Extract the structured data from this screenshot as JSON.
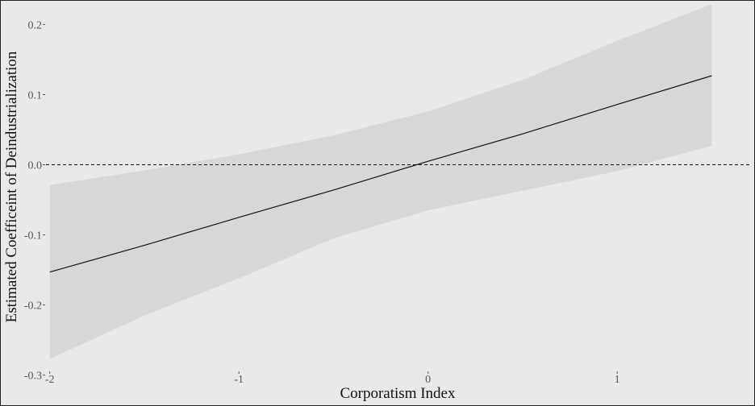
{
  "chart_data": {
    "type": "line",
    "xlabel": "Corporatism Index",
    "ylabel": "Estimated Coefficeint of Deindustrialization",
    "xlim": [
      -2.02,
      1.72
    ],
    "ylim": [
      -0.305,
      0.235
    ],
    "x_ticks": [
      -2,
      -1,
      0,
      1
    ],
    "x_tick_labels": [
      "-2",
      "-1",
      "0",
      "1"
    ],
    "y_ticks": [
      0.2,
      0.1,
      0.0,
      -0.1,
      -0.2,
      -0.3
    ],
    "y_tick_labels": [
      "0.2",
      "0.1",
      "0.0",
      "-0.1",
      "-0.2",
      "-0.3"
    ],
    "reference_line": {
      "y": 0.0,
      "style": "dashed"
    },
    "series": [
      {
        "x": [
          -2.0,
          -1.5,
          -1.0,
          -0.5,
          0.0,
          0.5,
          1.0,
          1.5
        ],
        "y": [
          -0.153,
          -0.115,
          -0.075,
          -0.036,
          0.005,
          0.044,
          0.086,
          0.127
        ],
        "ci_lower": [
          -0.277,
          -0.215,
          -0.162,
          -0.105,
          -0.065,
          -0.037,
          -0.009,
          0.027
        ],
        "ci_upper": [
          -0.029,
          -0.008,
          0.015,
          0.042,
          0.076,
          0.121,
          0.177,
          0.229
        ]
      }
    ],
    "colors": {
      "line": "#111111",
      "band": "#d6d7d9",
      "background": "#e8e9eb"
    },
    "grid": false
  }
}
